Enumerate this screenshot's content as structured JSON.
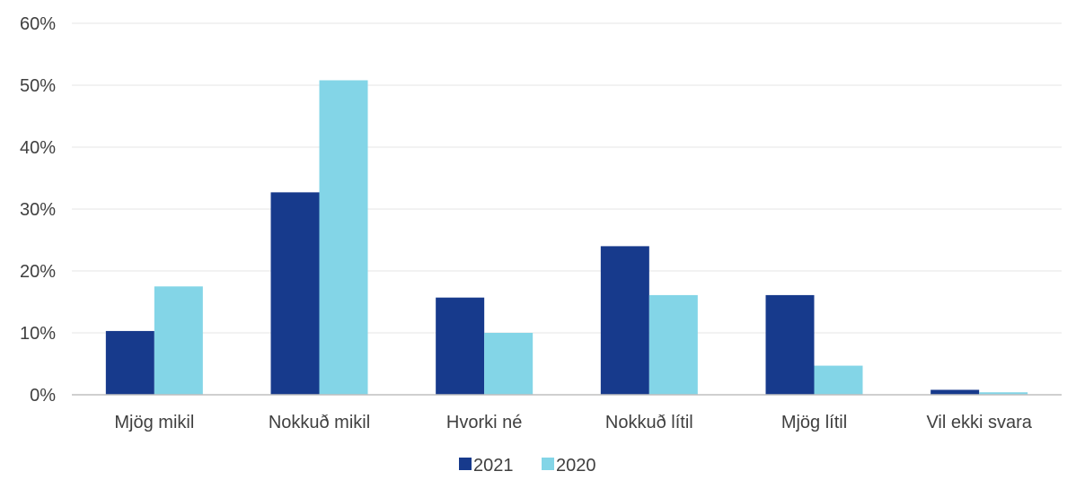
{
  "chart_data": {
    "type": "bar",
    "categories": [
      "Mjög mikil",
      "Nokkuð mikil",
      "Hvorki né",
      "Nokkuð lítil",
      "Mjög lítil",
      "Vil ekki svara"
    ],
    "series": [
      {
        "name": "2021",
        "color": "#173a8c",
        "values": [
          10.3,
          32.7,
          15.7,
          24.0,
          16.1,
          0.8
        ]
      },
      {
        "name": "2020",
        "color": "#83d5e7",
        "values": [
          17.5,
          50.8,
          10.0,
          16.1,
          4.7,
          0.4
        ]
      }
    ],
    "yticks": [
      "0%",
      "10%",
      "20%",
      "30%",
      "40%",
      "50%",
      "60%"
    ],
    "ylim": [
      0,
      60
    ],
    "grid": true,
    "legend": "bottom-center"
  }
}
